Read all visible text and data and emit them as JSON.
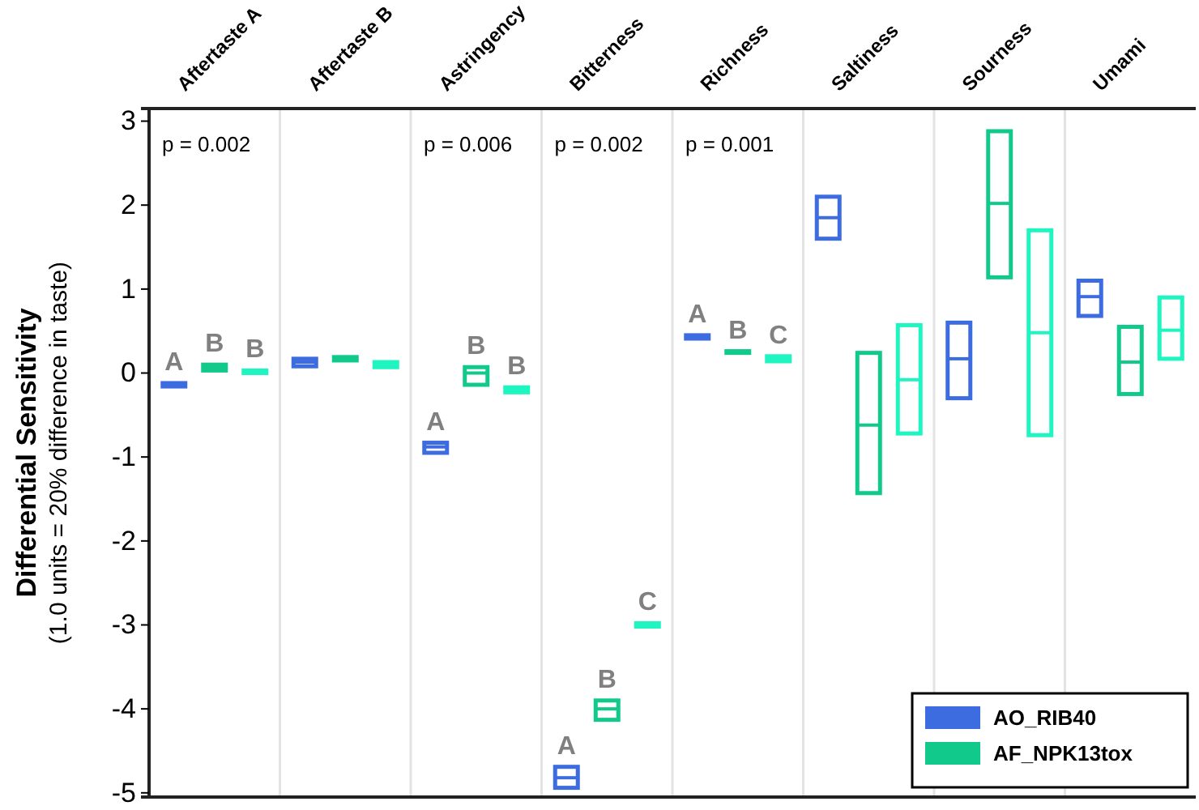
{
  "chart_data": {
    "type": "box",
    "ylabel": "Differential Sensitivity\n(1.0 units = 20% difference in taste)",
    "categories": [
      "Aftertaste A",
      "Aftertaste B",
      "Astringency",
      "Bitterness",
      "Richness",
      "Saltiness",
      "Sourness",
      "Umami"
    ],
    "ylim": [
      -5.05,
      3.15
    ],
    "yticks": [
      -5,
      -4,
      -3,
      -2,
      -1,
      0,
      1,
      2,
      3
    ],
    "legend": "bottom right",
    "series": [
      {
        "name": "AO_RIB40",
        "color": "#3d6be0",
        "value_labels": [
          "A",
          null,
          "A",
          "A",
          "A",
          null,
          null,
          null
        ],
        "boxes": [
          {
            "low": -0.16,
            "q1": -0.16,
            "median": -0.14,
            "q3": -0.12,
            "high": -0.12
          },
          {
            "low": 0.08,
            "q1": 0.08,
            "median": 0.13,
            "q3": 0.17,
            "high": 0.17
          },
          {
            "low": -0.95,
            "q1": -0.95,
            "median": -0.88,
            "q3": -0.83,
            "high": -0.83
          },
          {
            "low": -4.94,
            "q1": -4.94,
            "median": -4.82,
            "q3": -4.69,
            "high": -4.69
          },
          {
            "low": 0.41,
            "q1": 0.41,
            "median": 0.43,
            "q3": 0.45,
            "high": 0.45
          },
          {
            "low": 1.6,
            "q1": 1.6,
            "median": 1.85,
            "q3": 2.1,
            "high": 2.1
          },
          {
            "low": -0.3,
            "q1": -0.3,
            "median": 0.17,
            "q3": 0.6,
            "high": 0.6
          },
          {
            "low": 0.68,
            "q1": 0.68,
            "median": 0.91,
            "q3": 1.1,
            "high": 1.1
          }
        ]
      },
      {
        "name": "AF_NPK13tox",
        "color": "#12c98c",
        "value_labels": [
          "B",
          null,
          "B",
          "B",
          "B",
          null,
          null,
          null
        ],
        "boxes": [
          {
            "low": 0.03,
            "q1": 0.03,
            "median": 0.07,
            "q3": 0.1,
            "high": 0.1
          },
          {
            "low": 0.15,
            "q1": 0.15,
            "median": 0.17,
            "q3": 0.19,
            "high": 0.19
          },
          {
            "low": -0.14,
            "q1": -0.14,
            "median": 0.0,
            "q3": 0.07,
            "high": 0.07
          },
          {
            "low": -4.13,
            "q1": -4.13,
            "median": -4.0,
            "q3": -3.9,
            "high": -3.9
          },
          {
            "low": 0.24,
            "q1": 0.24,
            "median": 0.25,
            "q3": 0.26,
            "high": 0.26
          },
          {
            "low": -1.43,
            "q1": -1.43,
            "median": -0.62,
            "q3": 0.24,
            "high": 0.24
          },
          {
            "low": 1.14,
            "q1": 1.14,
            "median": 2.02,
            "q3": 2.88,
            "high": 2.88
          },
          {
            "low": -0.25,
            "q1": -0.25,
            "median": 0.13,
            "q3": 0.55,
            "high": 0.55
          }
        ]
      },
      {
        "color": "#1ef5c0",
        "value_labels": [
          "B",
          null,
          "B",
          "C",
          "C",
          null,
          null,
          null
        ],
        "boxes": [
          {
            "low": 0.0,
            "q1": 0.0,
            "median": 0.02,
            "q3": 0.03,
            "high": 0.03
          },
          {
            "low": 0.07,
            "q1": 0.07,
            "median": 0.1,
            "q3": 0.13,
            "high": 0.13
          },
          {
            "low": -0.23,
            "q1": -0.23,
            "median": -0.2,
            "q3": -0.17,
            "high": -0.17
          },
          {
            "low": -3.02,
            "q1": -3.02,
            "median": -3.0,
            "q3": -2.98,
            "high": -2.98
          },
          {
            "low": 0.14,
            "q1": 0.14,
            "median": 0.17,
            "q3": 0.2,
            "high": 0.2
          },
          {
            "low": -0.72,
            "q1": -0.72,
            "median": -0.08,
            "q3": 0.57,
            "high": 0.57
          },
          {
            "low": -0.74,
            "q1": -0.74,
            "median": 0.48,
            "q3": 1.7,
            "high": 1.7
          },
          {
            "low": 0.17,
            "q1": 0.17,
            "median": 0.51,
            "q3": 0.9,
            "high": 0.9
          }
        ]
      }
    ],
    "annotations": [
      "p = 0.002",
      "p = 0.006",
      "p = 0.002",
      "p = 0.001"
    ]
  }
}
